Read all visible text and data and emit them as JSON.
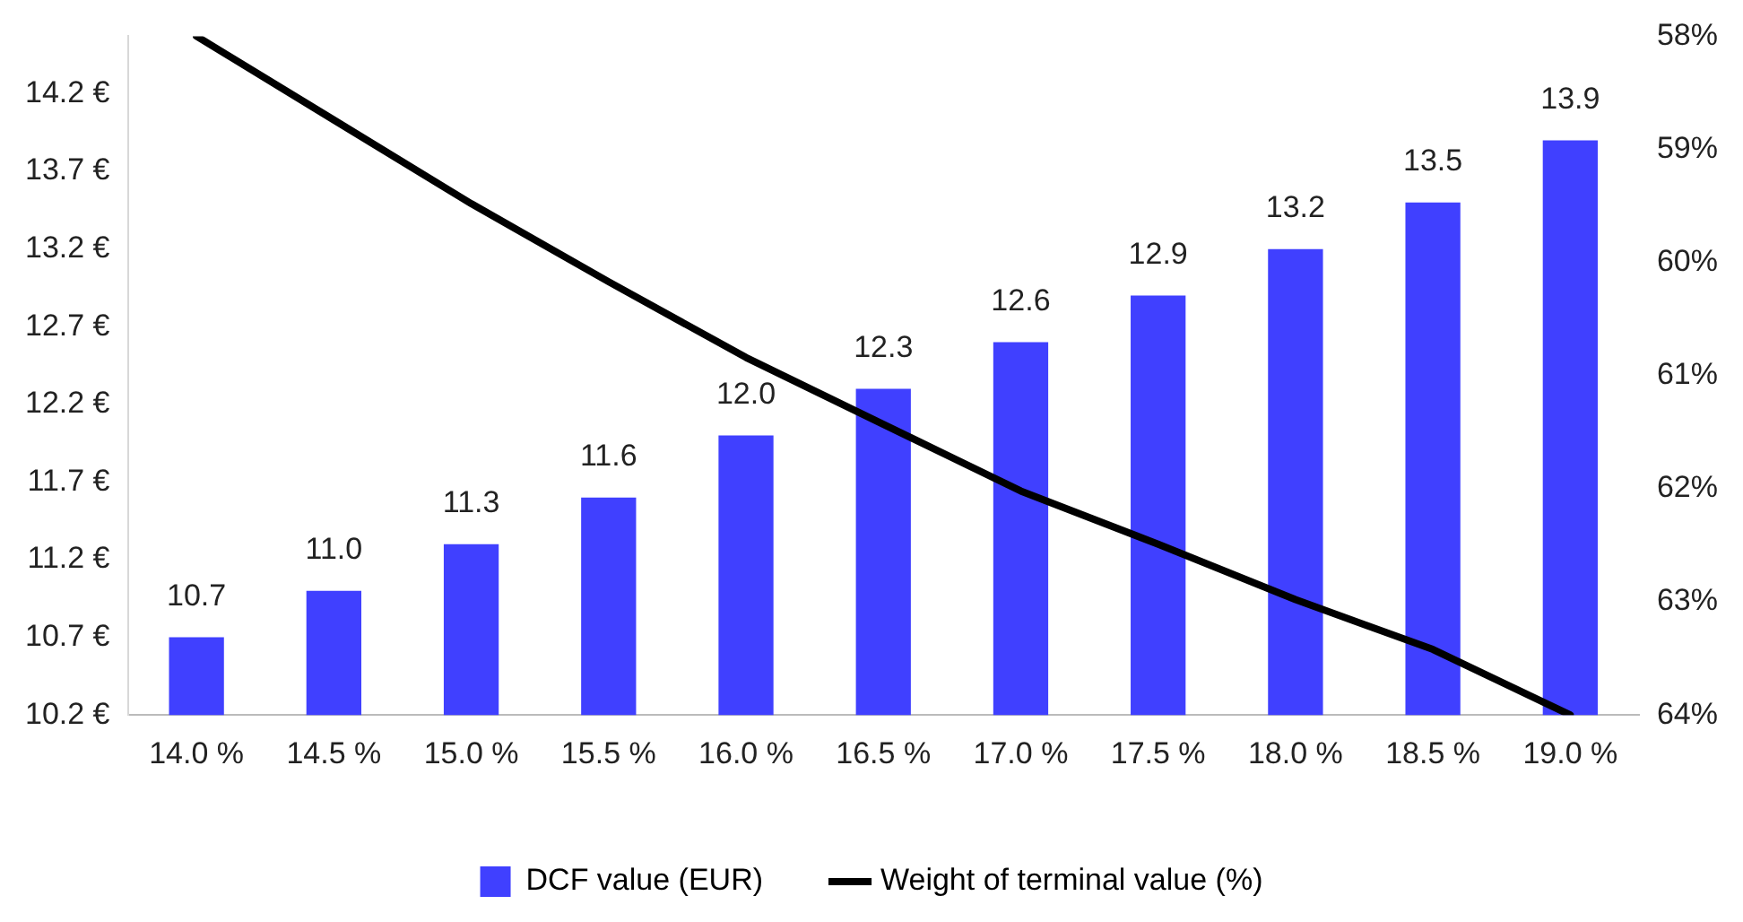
{
  "chart_data": {
    "type": "bar",
    "categories": [
      "14.0 %",
      "14.5 %",
      "15.0 %",
      "15.5 %",
      "16.0 %",
      "16.5 %",
      "17.0 %",
      "17.5 %",
      "18.0 %",
      "18.5 %",
      "19.0 %"
    ],
    "series": [
      {
        "name": "DCF value (EUR)",
        "color": "#4040ff",
        "values": [
          10.7,
          11.0,
          11.3,
          11.6,
          12.0,
          12.3,
          12.6,
          12.9,
          13.2,
          13.5,
          13.9
        ],
        "value_labels": [
          "10.7",
          "11.0",
          "11.3",
          "11.6",
          "12.0",
          "12.3",
          "12.6",
          "12.9",
          "13.2",
          "13.5",
          "13.9"
        ]
      },
      {
        "name": "Weight of terminal value (%)",
        "type": "line",
        "axis": "y2",
        "color": "#000000",
        "values": [
          58.0,
          58.74,
          59.48,
          60.17,
          60.84,
          61.43,
          62.02,
          62.49,
          62.98,
          63.42,
          64.0
        ]
      }
    ],
    "ylim": [
      10.2,
      14.57
    ],
    "yticks": [
      {
        "value": 10.2,
        "label": "10.2 €"
      },
      {
        "value": 10.7,
        "label": "10.7 €"
      },
      {
        "value": 11.2,
        "label": "11.2 €"
      },
      {
        "value": 11.7,
        "label": "11.7 €"
      },
      {
        "value": 12.2,
        "label": "12.2 €"
      },
      {
        "value": 12.7,
        "label": "12.7 €"
      },
      {
        "value": 13.2,
        "label": "13.2 €"
      },
      {
        "value": 13.7,
        "label": "13.7 €"
      },
      {
        "value": 14.2,
        "label": "14.2 €"
      }
    ],
    "y2lim": [
      64,
      58
    ],
    "y2ticks": [
      {
        "value": 58,
        "label": "58%"
      },
      {
        "value": 59,
        "label": "59%"
      },
      {
        "value": 60,
        "label": "60%"
      },
      {
        "value": 61,
        "label": "61%"
      },
      {
        "value": 62,
        "label": "62%"
      },
      {
        "value": 63,
        "label": "63%"
      },
      {
        "value": 64,
        "label": "64%"
      }
    ],
    "grid": false,
    "legend": "bottom",
    "marker": "none",
    "line_style": "solid"
  }
}
